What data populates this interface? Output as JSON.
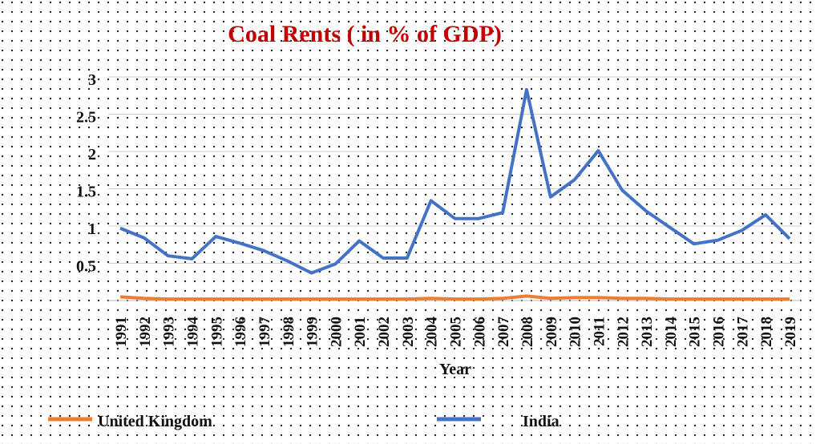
{
  "chart_data": {
    "type": "line",
    "title": "Coal Rents ( in % of GDP)",
    "x_label": "Year",
    "categories": [
      "1991",
      "1992",
      "1993",
      "1994",
      "1995",
      "1996",
      "1997",
      "1998",
      "1999",
      "2000",
      "2001",
      "2002",
      "2003",
      "2004",
      "2005",
      "2006",
      "2007",
      "2008",
      "2009",
      "2010",
      "2011",
      "2012",
      "2013",
      "2014",
      "2015",
      "2016",
      "2017",
      "2018",
      "2019"
    ],
    "series": [
      {
        "name": "United Kingdom",
        "color": "#ed7d31",
        "values": [
          0.05,
          0.03,
          0.02,
          0.02,
          0.02,
          0.02,
          0.02,
          0.02,
          0.02,
          0.02,
          0.02,
          0.02,
          0.02,
          0.03,
          0.02,
          0.02,
          0.03,
          0.06,
          0.03,
          0.04,
          0.04,
          0.03,
          0.03,
          0.02,
          0.02,
          0.02,
          0.02,
          0.02,
          0.02
        ]
      },
      {
        "name": "India",
        "color": "#4472c4",
        "values": [
          0.97,
          0.84,
          0.6,
          0.56,
          0.86,
          0.77,
          0.67,
          0.53,
          0.37,
          0.49,
          0.8,
          0.57,
          0.57,
          1.34,
          1.1,
          1.1,
          1.18,
          2.83,
          1.39,
          1.62,
          2.01,
          1.48,
          1.2,
          0.98,
          0.76,
          0.81,
          0.94,
          1.15,
          0.83
        ]
      }
    ],
    "ylim": [
      0,
      3
    ],
    "yticks": [
      0.5,
      1,
      1.5,
      2,
      2.5,
      3
    ],
    "grid": true
  }
}
